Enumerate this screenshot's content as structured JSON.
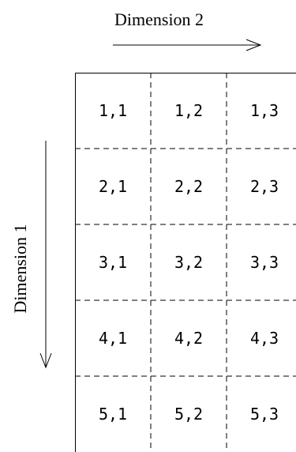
{
  "axis_labels": {
    "dimension2": "Dimension 2",
    "dimension1": "Dimension 1"
  },
  "grid": {
    "rows": [
      [
        "1,1",
        "1,2",
        "1,3"
      ],
      [
        "2,1",
        "2,2",
        "2,3"
      ],
      [
        "3,1",
        "3,2",
        "3,3"
      ],
      [
        "4,1",
        "4,2",
        "4,3"
      ],
      [
        "5,1",
        "5,2",
        "5,3"
      ]
    ]
  }
}
